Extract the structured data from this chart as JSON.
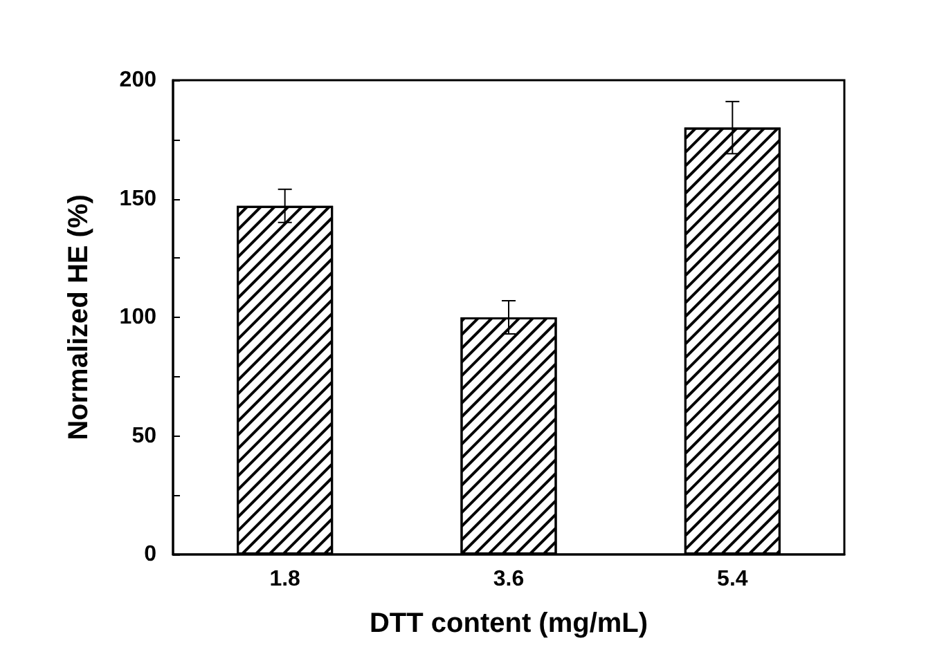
{
  "chart_data": {
    "type": "bar",
    "xlabel": "DTT content (mg/mL)",
    "ylabel": "Normalized HE (%)",
    "categories": [
      "1.8",
      "3.6",
      "5.4"
    ],
    "values": [
      147,
      100,
      180
    ],
    "errors": [
      7,
      7,
      11
    ],
    "color": "#ffffff",
    "ylim": [
      0,
      200
    ],
    "yticks": [
      0,
      {
        "value": 25,
        "label": null
      },
      50,
      {
        "value": 75,
        "label": null
      },
      100,
      {
        "value": 125,
        "label": null
      },
      150,
      {
        "value": 175,
        "label": null
      },
      200
    ],
    "grid": false
  }
}
